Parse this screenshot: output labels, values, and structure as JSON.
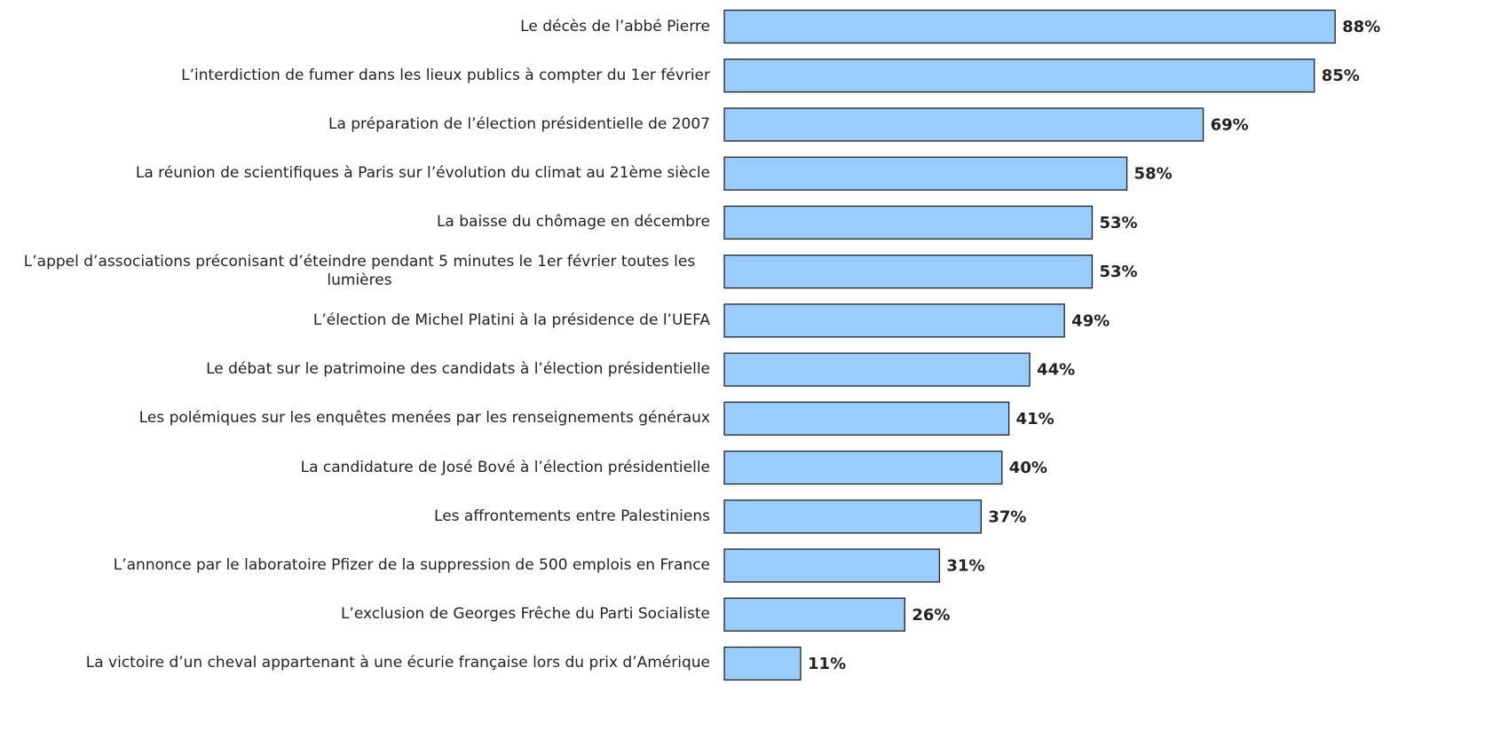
{
  "chart_data": {
    "type": "barh",
    "categories": [
      "Le décès de l’abbé Pierre",
      "L’interdiction de fumer dans les lieux publics à compter du 1er février",
      "La préparation de l’élection présidentielle de 2007",
      "La réunion de scientifiques à Paris sur l’évolution du climat au 21ème siècle",
      "La baisse du chômage en décembre",
      "L’appel d’associations préconisant d’éteindre pendant 5 minutes le 1er février toutes les lumières",
      "L’élection de Michel Platini à la présidence de l’UEFA",
      "Le débat sur le patrimoine des candidats à l’élection présidentielle",
      "Les polémiques sur les enquêtes menées par les renseignements généraux",
      "La candidature de José Bové à l’élection présidentielle",
      "Les affrontements entre Palestiniens",
      "L’annonce par le laboratoire Pfizer de la suppression de 500 emplois en France",
      "L’exclusion de Georges Frêche du Parti Socialiste",
      "La victoire d’un cheval appartenant à une écurie française lors du prix d’Amérique"
    ],
    "values": [
      88,
      85,
      69,
      58,
      53,
      53,
      49,
      44,
      41,
      40,
      37,
      31,
      26,
      11
    ],
    "value_labels": [
      "88%",
      "85%",
      "69%",
      "58%",
      "53%",
      "53%",
      "49%",
      "44%",
      "41%",
      "40%",
      "37%",
      "31%",
      "26%",
      "11%"
    ],
    "color": "#99ccff",
    "xlim": [
      0,
      100
    ]
  }
}
